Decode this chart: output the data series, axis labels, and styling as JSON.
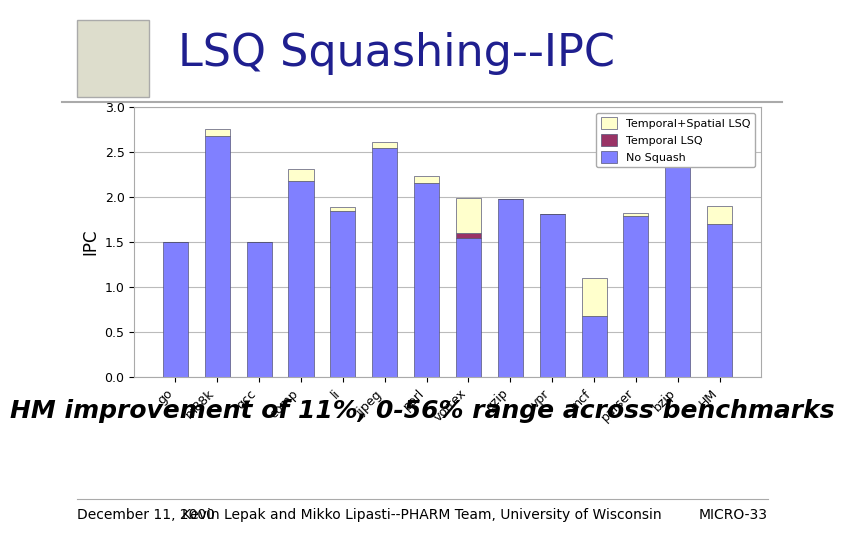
{
  "categories": [
    "go",
    "m88k",
    "gcc",
    "comp",
    "li",
    "ijpeg",
    "perl",
    "vortex",
    "gzip",
    "vpr",
    "mcf",
    "parser",
    "bzip",
    "HM"
  ],
  "no_squash": [
    1.5,
    2.68,
    1.5,
    2.18,
    1.85,
    2.55,
    2.16,
    1.55,
    1.98,
    1.81,
    0.68,
    1.79,
    2.5,
    1.7
  ],
  "temporal_lsq": [
    0.0,
    0.0,
    0.0,
    0.0,
    0.0,
    0.0,
    0.0,
    0.05,
    0.0,
    0.0,
    0.0,
    0.0,
    0.0,
    0.0
  ],
  "temporal_spatial": [
    0.0,
    0.08,
    0.0,
    0.13,
    0.04,
    0.06,
    0.07,
    0.39,
    0.0,
    0.0,
    0.42,
    0.04,
    0.06,
    0.2
  ],
  "color_no_squash": "#8080ff",
  "color_temporal_lsq": "#993366",
  "color_temporal_spatial": "#ffffcc",
  "title": "LSQ Squashing--IPC",
  "ylabel": "IPC",
  "ylim": [
    0,
    3
  ],
  "yticks": [
    0,
    0.5,
    1,
    1.5,
    2,
    2.5,
    3
  ],
  "subtitle": "HM improvement of 11%, 0-56% range across benchmarks",
  "footer_left": "December 11, 2000",
  "footer_center": "Kevin Lepak and Mikko Lipasti--PHARM Team, University of Wisconsin",
  "footer_right": "MICRO-33",
  "title_color": "#1f1f8f",
  "title_fontsize": 32,
  "subtitle_fontsize": 18,
  "footer_fontsize": 10,
  "bar_width": 0.6,
  "grid_color": "#bbbbbb",
  "bg_color": "#ffffff",
  "plot_bg_color": "#ffffff"
}
